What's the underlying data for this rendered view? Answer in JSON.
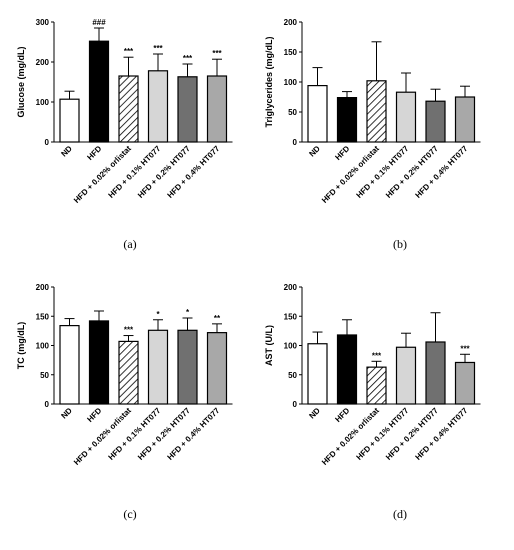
{
  "chart_data": [
    {
      "type": "bar",
      "panel_label": "(a)",
      "ylabel": "Glucose (mg/dL)",
      "ylim": [
        0,
        300
      ],
      "yticks": [
        "0",
        "100",
        "200",
        "300"
      ],
      "categories": [
        "ND",
        "HFD",
        "HFD + 0.02% orlistat",
        "HFD + 0.1% HT077",
        "HFD + 0.2% HT077",
        "HFD + 0.4% HT077"
      ],
      "values": [
        107,
        252,
        165,
        178,
        163,
        165
      ],
      "errors": [
        20,
        33,
        47,
        42,
        32,
        42
      ],
      "significance": [
        "",
        "###",
        "***",
        "***",
        "***",
        "***"
      ],
      "bar_fills": [
        "#ffffff",
        "#000000",
        "hatch",
        "#d6d6d6",
        "#707070",
        "#a8a8a8"
      ]
    },
    {
      "type": "bar",
      "panel_label": "(b)",
      "ylabel": "Triglycerides (mg/dL)",
      "ylim": [
        0,
        200
      ],
      "yticks": [
        "0",
        "50",
        "100",
        "150",
        "200"
      ],
      "categories": [
        "ND",
        "HFD",
        "HFD + 0.02% orlistat",
        "HFD + 0.1% HT077",
        "HFD + 0.2% HT077",
        "HFD + 0.4% HT077"
      ],
      "values": [
        94,
        74,
        102,
        83,
        68,
        75
      ],
      "errors": [
        30,
        10,
        65,
        32,
        20,
        18
      ],
      "significance": [
        "",
        "",
        "",
        "",
        "",
        ""
      ],
      "bar_fills": [
        "#ffffff",
        "#000000",
        "hatch",
        "#d6d6d6",
        "#707070",
        "#a8a8a8"
      ]
    },
    {
      "type": "bar",
      "panel_label": "(c)",
      "ylabel": "TC (mg/dL)",
      "ylim": [
        0,
        200
      ],
      "yticks": [
        "0",
        "50",
        "100",
        "150",
        "200"
      ],
      "categories": [
        "ND",
        "HFD",
        "HFD + 0.02% orlistat",
        "HFD + 0.1% HT077",
        "HFD + 0.2% HT077",
        "HFD + 0.4% HT077"
      ],
      "values": [
        134,
        142,
        107,
        126,
        126,
        122
      ],
      "errors": [
        12,
        17,
        10,
        18,
        21,
        15
      ],
      "significance": [
        "",
        "",
        "***",
        "*",
        "*",
        "**"
      ],
      "bar_fills": [
        "#ffffff",
        "#000000",
        "hatch",
        "#d6d6d6",
        "#707070",
        "#a8a8a8"
      ]
    },
    {
      "type": "bar",
      "panel_label": "(d)",
      "ylabel": "AST (U/L)",
      "ylim": [
        0,
        200
      ],
      "yticks": [
        "0",
        "50",
        "100",
        "150",
        "200"
      ],
      "categories": [
        "ND",
        "HFD",
        "HFD + 0.02% orlistat",
        "HFD + 0.1% HT077",
        "HFD + 0.2% HT077",
        "HFD + 0.4% HT077"
      ],
      "values": [
        103,
        118,
        63,
        97,
        106,
        71
      ],
      "errors": [
        20,
        26,
        10,
        24,
        50,
        14
      ],
      "significance": [
        "",
        "",
        "***",
        "",
        "",
        "***"
      ],
      "bar_fills": [
        "#ffffff",
        "#000000",
        "hatch",
        "#d6d6d6",
        "#707070",
        "#a8a8a8"
      ]
    }
  ]
}
